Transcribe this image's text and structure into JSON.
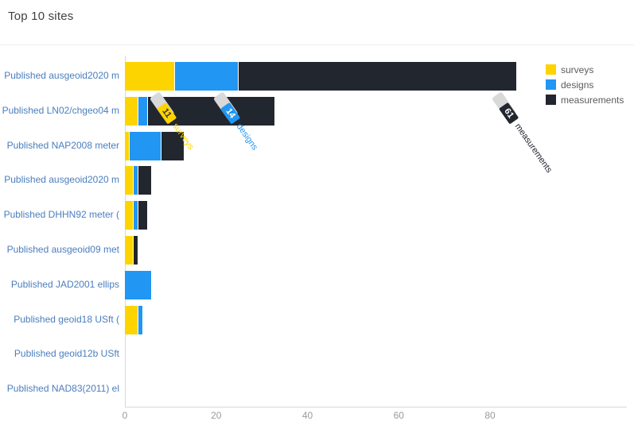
{
  "title": "Top 10 sites",
  "legend": [
    {
      "label": "surveys",
      "color": "#fdd400"
    },
    {
      "label": "designs",
      "color": "#2196f3"
    },
    {
      "label": "measurements",
      "color": "#22262e"
    }
  ],
  "chart_data": {
    "type": "bar",
    "orientation": "horizontal",
    "title": "Top 10 sites",
    "xlabel": "",
    "ylabel": "",
    "grid": false,
    "legend_position": "top-right",
    "xlim": [
      0,
      88
    ],
    "ticks": [
      0,
      20,
      40,
      60,
      80
    ],
    "categories": [
      "Published ausgeoid2020 m",
      "Published LN02/chgeo04 m",
      "Published NAP2008 meter",
      "Published ausgeoid2020 m",
      "Published DHHN92 meter (",
      "Published ausgeoid09 met",
      "Published JAD2001 ellips",
      "Published geoid18 USft (",
      "Published geoid12b USft",
      "Published NAD83(2011) el"
    ],
    "series": [
      {
        "name": "surveys",
        "color": "#fdd400",
        "values": [
          11,
          3,
          1,
          2,
          2,
          2,
          0,
          3,
          0,
          0
        ]
      },
      {
        "name": "designs",
        "color": "#2196f3",
        "values": [
          14,
          2,
          7,
          1,
          1,
          0,
          6,
          1,
          0,
          0
        ]
      },
      {
        "name": "measurements",
        "color": "#22262e",
        "values": [
          61,
          28,
          5,
          3,
          2,
          1,
          0,
          0,
          0,
          0
        ]
      }
    ],
    "annotations": [
      {
        "value": "11",
        "series": "surveys"
      },
      {
        "value": "14",
        "series": "designs"
      },
      {
        "value": "61",
        "series": "measurements"
      }
    ]
  }
}
